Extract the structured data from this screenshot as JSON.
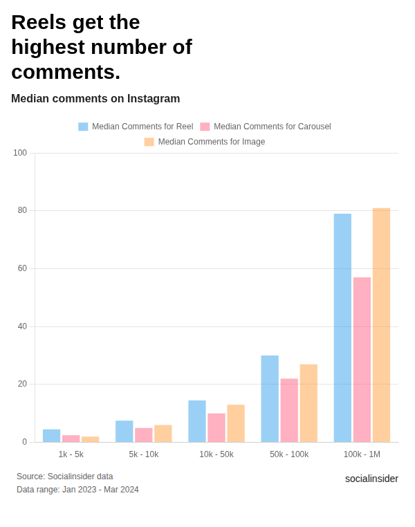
{
  "chart_data": {
    "type": "bar",
    "title": "Reels get the\nhighest number of\ncomments.",
    "subtitle": "Median comments on Instagram",
    "categories": [
      "1k - 5k",
      "5k - 10k",
      "10k - 50k",
      "50k - 100k",
      "100k - 1M"
    ],
    "series": [
      {
        "name": "Median Comments for Reel",
        "values": [
          4.5,
          7.5,
          14.5,
          30,
          79
        ]
      },
      {
        "name": "Median Comments for Carousel",
        "values": [
          2.5,
          5,
          10,
          22,
          57
        ]
      },
      {
        "name": "Median Comments for Image",
        "values": [
          2,
          6,
          13,
          27,
          81
        ]
      }
    ],
    "ylim": [
      0,
      100
    ],
    "yticks": [
      0,
      20,
      40,
      60,
      80,
      100
    ],
    "grid": true,
    "legend": "top",
    "annotations": [
      "Source: Socialinsider data\nData range: Jan 2023 - Mar 2024",
      "socialinsider"
    ]
  }
}
